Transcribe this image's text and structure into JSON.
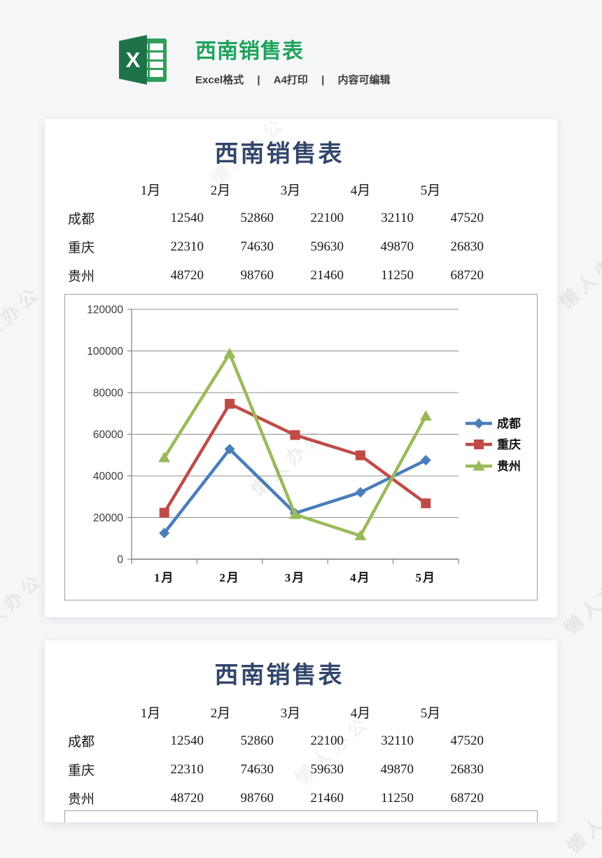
{
  "page_header": {
    "title": "西南销售表",
    "meta": [
      "Excel格式",
      "A4打印",
      "内容可编辑"
    ],
    "separator": "|",
    "brand_color": "#1fa35c",
    "icon_letter": "X"
  },
  "sheet": {
    "title": "西南销售表",
    "title_color": "#32466b",
    "columns": [
      "1月",
      "2月",
      "3月",
      "4月",
      "5月"
    ],
    "rows": [
      {
        "label": "成都",
        "values": [
          12540,
          52860,
          22100,
          32110,
          47520
        ]
      },
      {
        "label": "重庆",
        "values": [
          22310,
          74630,
          59630,
          49870,
          26830
        ]
      },
      {
        "label": "贵州",
        "values": [
          48720,
          98760,
          21460,
          11250,
          68720
        ]
      }
    ]
  },
  "chart_data": {
    "type": "line",
    "categories": [
      "1月",
      "2月",
      "3月",
      "4月",
      "5月"
    ],
    "series": [
      {
        "name": "成都",
        "color": "#4a7ebb",
        "marker": "diamond",
        "values": [
          12540,
          52860,
          22100,
          32110,
          47520
        ]
      },
      {
        "name": "重庆",
        "color": "#bf4b47",
        "marker": "square",
        "values": [
          22310,
          74630,
          59630,
          49870,
          26830
        ]
      },
      {
        "name": "贵州",
        "color": "#9aba59",
        "marker": "triangle",
        "values": [
          48720,
          98760,
          21460,
          11250,
          68720
        ]
      }
    ],
    "ylim": [
      0,
      120000
    ],
    "ytick_step": 20000,
    "grid": true,
    "legend_position": "right",
    "axis_color": "#8f8f8f"
  },
  "watermark": {
    "text": "懒人办公"
  }
}
